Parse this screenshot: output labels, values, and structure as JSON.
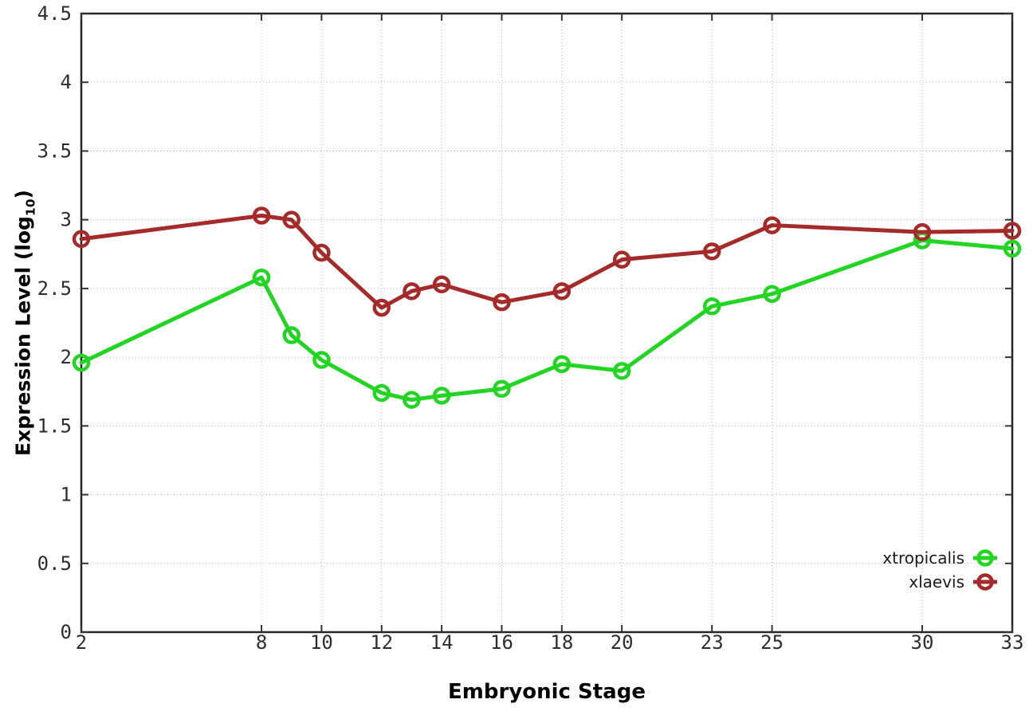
{
  "chart_data": {
    "type": "line",
    "title": "",
    "xlabel": "Embryonic Stage",
    "ylabel": {
      "prefix": "Expression Level (log",
      "sub": "10",
      "suffix": ")"
    },
    "x": [
      2,
      8,
      9,
      10,
      12,
      13,
      14,
      16,
      18,
      20,
      23,
      25,
      30,
      33
    ],
    "xticks": [
      2,
      8,
      10,
      12,
      14,
      16,
      18,
      20,
      23,
      25,
      30,
      33
    ],
    "yticks": [
      0,
      0.5,
      1,
      1.5,
      2,
      2.5,
      3,
      3.5,
      4,
      4.5
    ],
    "xlim": [
      2,
      33
    ],
    "ylim": [
      0,
      4.5
    ],
    "grid": "dotted",
    "legend_position": "bottom-right-inside",
    "series": [
      {
        "name": "xtropicalis",
        "color": "#23d523",
        "values": [
          1.96,
          2.58,
          2.16,
          1.98,
          1.74,
          1.69,
          1.72,
          1.77,
          1.95,
          1.9,
          2.37,
          2.46,
          2.85,
          2.79
        ]
      },
      {
        "name": "xlaevis",
        "color": "#a52a2a",
        "values": [
          2.86,
          3.03,
          3.0,
          2.76,
          2.36,
          2.48,
          2.53,
          2.4,
          2.48,
          2.71,
          2.77,
          2.96,
          2.91,
          2.92
        ]
      }
    ],
    "colors": {
      "background": "#ffffff",
      "grid": "#b3b3b3",
      "border": "#262626"
    }
  }
}
